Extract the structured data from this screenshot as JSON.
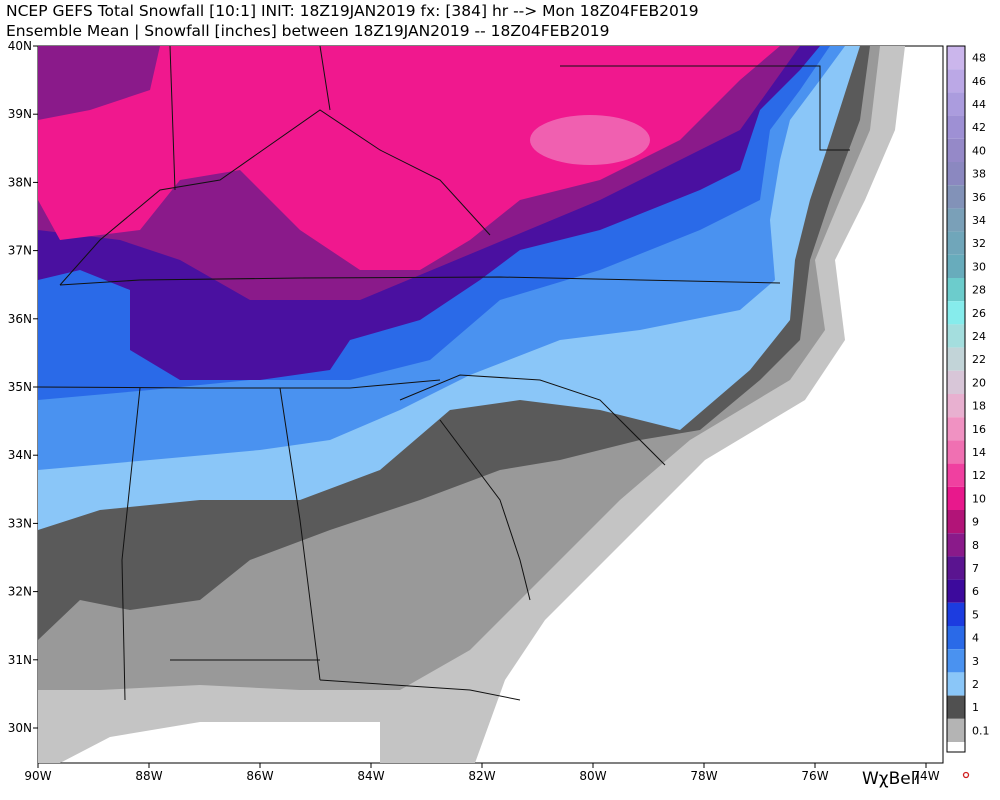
{
  "header": {
    "line1": "NCEP GEFS Total Snowfall [10:1] INIT: 18Z19JAN2019 fx: [384] hr --> Mon 18Z04FEB2019",
    "line2": "Ensemble Mean | Snowfall [inches] between 18Z19JAN2019 -- 18Z04FEB2019"
  },
  "map": {
    "lat_labels": [
      "40N",
      "39N",
      "38N",
      "37N",
      "36N",
      "35N",
      "34N",
      "33N",
      "32N",
      "31N",
      "30N"
    ],
    "lon_labels": [
      "90W",
      "88W",
      "86W",
      "84W",
      "82W",
      "80W",
      "78W",
      "76W",
      "74W"
    ]
  },
  "legend": {
    "labels": [
      "48",
      "46",
      "44",
      "42",
      "40",
      "38",
      "36",
      "34",
      "32",
      "30",
      "28",
      "26",
      "24",
      "22",
      "20",
      "18",
      "16",
      "14",
      "12",
      "10",
      "9",
      "8",
      "7",
      "6",
      "5",
      "4",
      "3",
      "2",
      "1",
      "0.1"
    ],
    "colors": [
      "#cbb6ec",
      "#bba8e6",
      "#ab9cde",
      "#9e90d4",
      "#9589c8",
      "#8b88c0",
      "#8292b8",
      "#7aa0b8",
      "#70a6ba",
      "#68acbc",
      "#6ccccc",
      "#86ecec",
      "#a4dede",
      "#c2d4d8",
      "#d8c6d8",
      "#e8b0d0",
      "#f092c2",
      "#f070b2",
      "#f040a0",
      "#e8188c",
      "#b21478",
      "#8a1a8a",
      "#5a1490",
      "#3c0a9c",
      "#1c3ce0",
      "#2a6ae8",
      "#4a92f0",
      "#8ac6f8",
      "#505050",
      "#b4b4b4"
    ]
  },
  "logo": "WχBell"
}
